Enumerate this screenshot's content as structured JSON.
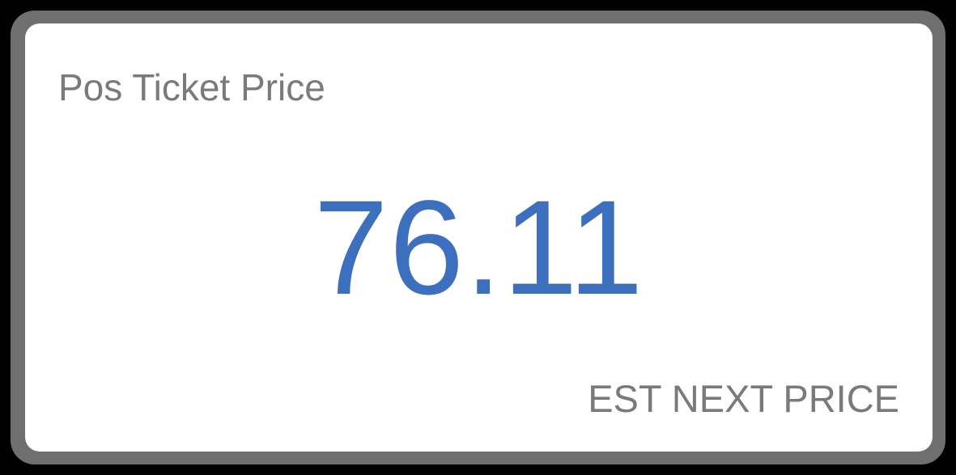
{
  "card": {
    "title": "Pos Ticket Price",
    "value": "76.11",
    "action_label": "EST NEXT PRICE"
  },
  "colors": {
    "background": "#000000",
    "frame": "#6f6f6f",
    "card": "#ffffff",
    "label_text": "#7a7a7a",
    "value_text": "#3d6fbf"
  }
}
